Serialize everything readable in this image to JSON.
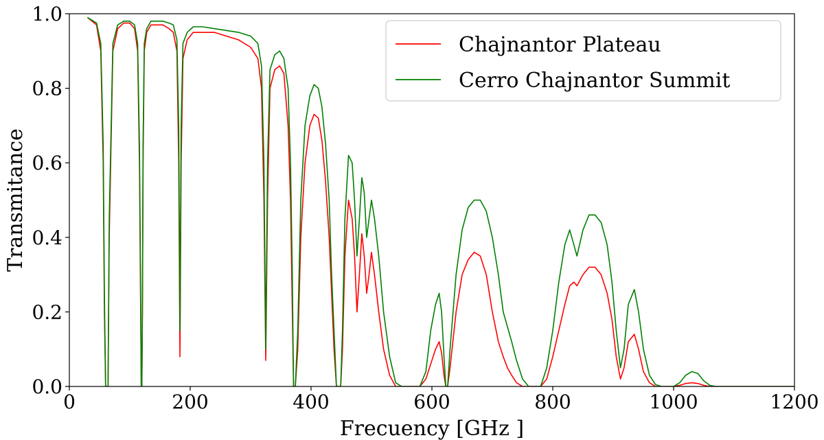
{
  "chart_data": {
    "type": "line",
    "title": "",
    "xlabel": "Frecuency [GHz ]",
    "ylabel": "Transmitance",
    "xlim": [
      0,
      1200
    ],
    "ylim": [
      0,
      1.0
    ],
    "xticks": [
      0,
      200,
      400,
      600,
      800,
      1000,
      1200
    ],
    "yticks": [
      0.0,
      0.2,
      0.4,
      0.6,
      0.8,
      1.0
    ],
    "xtick_labels": [
      "0",
      "200",
      "400",
      "600",
      "800",
      "1000",
      "1200"
    ],
    "ytick_labels": [
      "0.0",
      "0.2",
      "0.4",
      "0.6",
      "0.8",
      "1.0"
    ],
    "legend_position": "top-right",
    "grid": false,
    "series": [
      {
        "name": "Chajnantor Plateau",
        "color": "#ff0000",
        "x": [
          30,
          45,
          52,
          56,
          58,
          60,
          62,
          64,
          66,
          72,
          80,
          90,
          100,
          108,
          113,
          116,
          118,
          119,
          120,
          121,
          122,
          124,
          128,
          135,
          145,
          155,
          165,
          172,
          178,
          181,
          183,
          185,
          188,
          195,
          205,
          220,
          240,
          260,
          280,
          300,
          312,
          318,
          322,
          325,
          328,
          332,
          340,
          348,
          355,
          362,
          366,
          369,
          371,
          374,
          378,
          383,
          390,
          398,
          405,
          412,
          418,
          424,
          430,
          434,
          438,
          442,
          446,
          449,
          452,
          456,
          462,
          468,
          472,
          476,
          480,
          484,
          488,
          492,
          496,
          500,
          505,
          512,
          520,
          530,
          540,
          550,
          560,
          570,
          580,
          590,
          598,
          606,
          612,
          616,
          620,
          623,
          626,
          630,
          640,
          650,
          660,
          670,
          680,
          690,
          700,
          710,
          718,
          725,
          732,
          740,
          750,
          760,
          770,
          780,
          790,
          800,
          810,
          820,
          828,
          835,
          840,
          850,
          860,
          870,
          880,
          890,
          898,
          905,
          912,
          918,
          925,
          935,
          942,
          950,
          960,
          970,
          980,
          990,
          1000,
          1010,
          1020,
          1030,
          1040,
          1050,
          1060,
          1070,
          1100,
          1150,
          1200
        ],
        "y": [
          0.99,
          0.97,
          0.9,
          0.6,
          0.2,
          0.0,
          0.0,
          0.0,
          0.4,
          0.9,
          0.96,
          0.975,
          0.975,
          0.96,
          0.9,
          0.6,
          0.2,
          0.0,
          0.0,
          0.2,
          0.6,
          0.9,
          0.95,
          0.97,
          0.97,
          0.97,
          0.96,
          0.95,
          0.9,
          0.6,
          0.08,
          0.6,
          0.88,
          0.93,
          0.95,
          0.95,
          0.95,
          0.94,
          0.93,
          0.91,
          0.88,
          0.8,
          0.5,
          0.07,
          0.5,
          0.8,
          0.85,
          0.86,
          0.84,
          0.7,
          0.5,
          0.2,
          0.0,
          0.0,
          0.1,
          0.4,
          0.6,
          0.7,
          0.73,
          0.72,
          0.66,
          0.55,
          0.4,
          0.25,
          0.1,
          0.0,
          0.0,
          0.0,
          0.1,
          0.35,
          0.5,
          0.45,
          0.35,
          0.2,
          0.3,
          0.41,
          0.35,
          0.25,
          0.3,
          0.36,
          0.3,
          0.2,
          0.1,
          0.03,
          0.0,
          0.0,
          0.0,
          0.0,
          0.0,
          0.02,
          0.06,
          0.1,
          0.12,
          0.09,
          0.03,
          0.0,
          0.0,
          0.05,
          0.2,
          0.3,
          0.34,
          0.36,
          0.35,
          0.3,
          0.2,
          0.12,
          0.08,
          0.05,
          0.03,
          0.01,
          0.0,
          0.0,
          0.0,
          0.0,
          0.02,
          0.08,
          0.15,
          0.22,
          0.27,
          0.28,
          0.27,
          0.3,
          0.32,
          0.32,
          0.3,
          0.25,
          0.18,
          0.08,
          0.02,
          0.05,
          0.12,
          0.14,
          0.1,
          0.04,
          0.01,
          0.0,
          0.0,
          0.0,
          0.0,
          0.003,
          0.008,
          0.01,
          0.008,
          0.003,
          0.0,
          0.0,
          0.0,
          0.0,
          0.0
        ]
      },
      {
        "name": "Cerro Chajnantor Summit",
        "color": "#008000",
        "x": [
          30,
          45,
          52,
          56,
          58,
          60,
          62,
          64,
          66,
          72,
          80,
          90,
          100,
          108,
          113,
          116,
          118,
          119,
          120,
          121,
          122,
          124,
          128,
          135,
          145,
          155,
          165,
          172,
          178,
          181,
          183,
          185,
          188,
          195,
          205,
          220,
          240,
          260,
          280,
          300,
          312,
          318,
          322,
          325,
          328,
          332,
          340,
          348,
          355,
          362,
          366,
          369,
          371,
          374,
          378,
          383,
          390,
          398,
          405,
          412,
          418,
          424,
          430,
          434,
          438,
          442,
          446,
          449,
          452,
          456,
          462,
          468,
          472,
          476,
          480,
          484,
          488,
          492,
          496,
          500,
          505,
          512,
          520,
          530,
          540,
          550,
          560,
          570,
          580,
          590,
          598,
          606,
          612,
          616,
          620,
          623,
          626,
          630,
          640,
          650,
          660,
          670,
          680,
          690,
          700,
          710,
          718,
          725,
          732,
          740,
          750,
          760,
          770,
          780,
          790,
          800,
          810,
          820,
          828,
          835,
          840,
          850,
          860,
          870,
          880,
          890,
          898,
          905,
          912,
          918,
          925,
          935,
          942,
          950,
          960,
          970,
          980,
          990,
          1000,
          1010,
          1020,
          1030,
          1040,
          1050,
          1060,
          1070,
          1100,
          1150,
          1200
        ],
        "y": [
          0.99,
          0.975,
          0.92,
          0.65,
          0.25,
          0.0,
          0.0,
          0.0,
          0.45,
          0.92,
          0.97,
          0.98,
          0.98,
          0.97,
          0.92,
          0.65,
          0.25,
          0.0,
          0.0,
          0.25,
          0.65,
          0.92,
          0.96,
          0.98,
          0.98,
          0.98,
          0.975,
          0.97,
          0.93,
          0.7,
          0.15,
          0.7,
          0.92,
          0.95,
          0.965,
          0.965,
          0.96,
          0.955,
          0.95,
          0.94,
          0.92,
          0.86,
          0.6,
          0.1,
          0.6,
          0.85,
          0.89,
          0.9,
          0.88,
          0.8,
          0.6,
          0.3,
          0.0,
          0.0,
          0.15,
          0.5,
          0.7,
          0.78,
          0.81,
          0.8,
          0.75,
          0.65,
          0.5,
          0.3,
          0.15,
          0.0,
          0.0,
          0.0,
          0.15,
          0.45,
          0.62,
          0.6,
          0.5,
          0.35,
          0.45,
          0.56,
          0.52,
          0.4,
          0.45,
          0.5,
          0.45,
          0.35,
          0.2,
          0.08,
          0.01,
          0.0,
          0.0,
          0.0,
          0.0,
          0.04,
          0.15,
          0.22,
          0.25,
          0.2,
          0.08,
          0.0,
          0.0,
          0.1,
          0.3,
          0.42,
          0.48,
          0.5,
          0.5,
          0.47,
          0.4,
          0.3,
          0.2,
          0.16,
          0.12,
          0.07,
          0.02,
          0.0,
          0.0,
          0.0,
          0.05,
          0.15,
          0.28,
          0.38,
          0.42,
          0.38,
          0.35,
          0.42,
          0.46,
          0.46,
          0.44,
          0.38,
          0.28,
          0.15,
          0.05,
          0.1,
          0.22,
          0.26,
          0.2,
          0.1,
          0.03,
          0.005,
          0.0,
          0.0,
          0.0,
          0.01,
          0.03,
          0.04,
          0.035,
          0.015,
          0.003,
          0.0,
          0.0,
          0.0,
          0.0
        ]
      }
    ]
  }
}
